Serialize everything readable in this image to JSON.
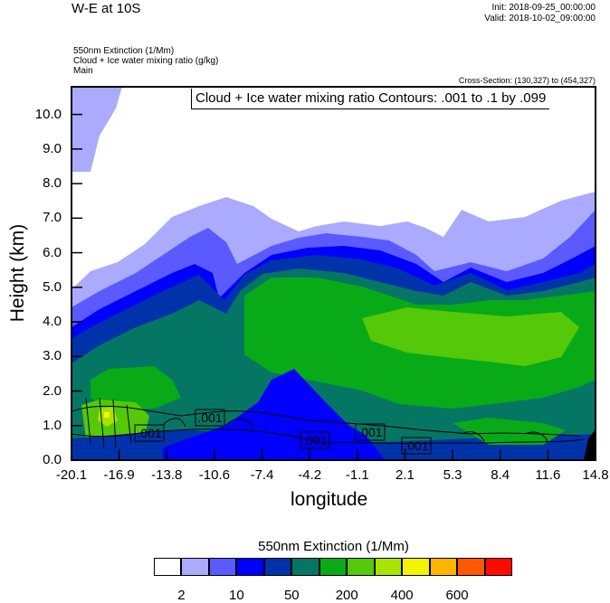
{
  "header": {
    "title": "W-E at 10S",
    "init": "Init: 2018-09-25_00:00:00",
    "valid": "Valid: 2018-10-02_09:00:00",
    "field1": "550nm Extinction   (1/Mm)",
    "field2": "Cloud + Ice water mixing ratio   (g/kg)",
    "field3": "Main",
    "cross_section": "Cross-Section: (130,327) to (454,327)"
  },
  "chart_data": {
    "type": "heatmap",
    "subtype": "filled contour cross-section with line contours",
    "contour_info": "Cloud + Ice water mixing ratio Contours: .001 to .1 by .099",
    "contour_labels": [
      ".001",
      ".001",
      ".001",
      ".001",
      ".001"
    ],
    "xlabel": "longitude",
    "ylabel": "Height (km)",
    "xlim": [
      -20.1,
      14.8
    ],
    "ylim": [
      0,
      10.8
    ],
    "xticks": [
      "-20.1",
      "-16.9",
      "-13.8",
      "-10.6",
      "-7.4",
      "-4.2",
      "-1.1",
      "2.1",
      "5.3",
      "8.4",
      "11.6",
      "14.8"
    ],
    "yticks": [
      "0.0",
      "1.0",
      "2.0",
      "3.0",
      "4.0",
      "5.0",
      "6.0",
      "7.0",
      "8.0",
      "9.0",
      "10.0"
    ],
    "grid": false,
    "colorbar": {
      "title": "550nm Extinction  (1/Mm)",
      "colors": [
        "#ffffff",
        "#aaaaff",
        "#5a5aff",
        "#0000ff",
        "#0033aa",
        "#067664",
        "#08aa18",
        "#55c80a",
        "#a8e400",
        "#f4f400",
        "#ffb400",
        "#ff5a00",
        "#ff0a00"
      ],
      "labels": [
        "2",
        "10",
        "50",
        "200",
        "400",
        "600"
      ],
      "placement": "bottom"
    }
  }
}
